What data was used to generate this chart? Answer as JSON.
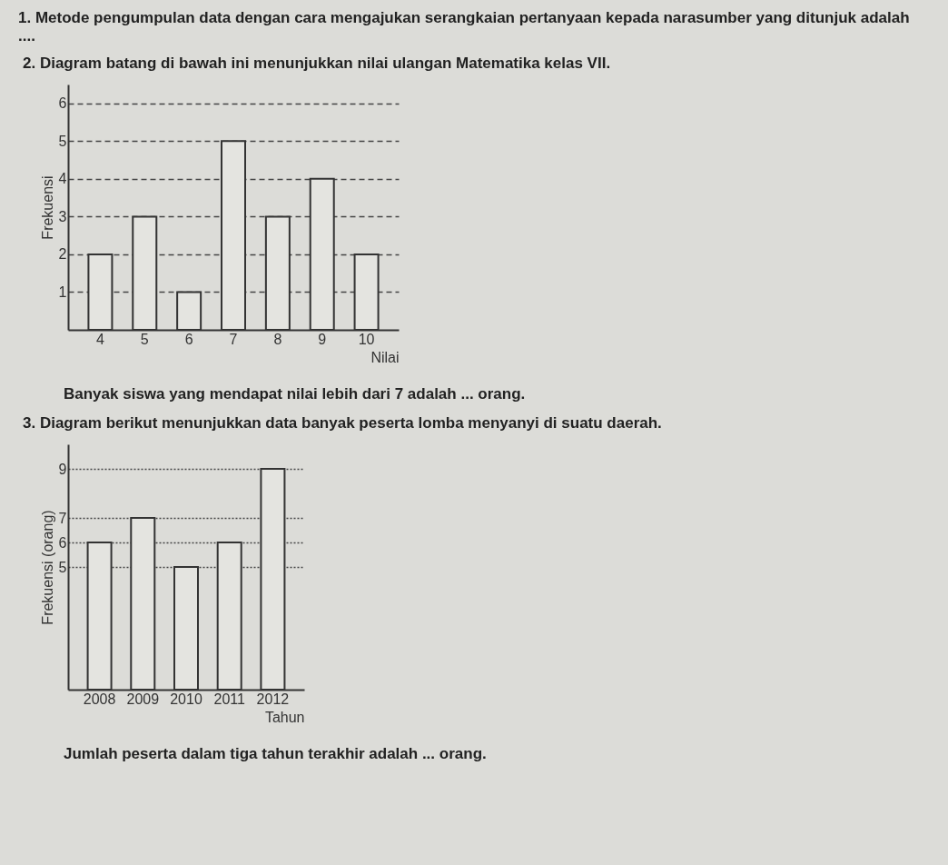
{
  "chart_data": [
    {
      "type": "other",
      "annotations": [
        "1. Metode pengumpulan data dengan cara mengajukan serangkaian pertanyaan kepada narasumber yang ditunjuk adalah ...."
      ]
    },
    {
      "type": "bar",
      "title": "2. Diagram batang di bawah ini menunjukkan nilai ulangan Matematika kelas VII.",
      "xlabel": "Nilai",
      "ylabel": "Frekuensi",
      "categories": [
        "4",
        "5",
        "6",
        "7",
        "8",
        "9",
        "10"
      ],
      "values": [
        2,
        3,
        1,
        5,
        3,
        4,
        2
      ],
      "color": "#e4e4e0",
      "ylim": [
        0,
        6.5
      ],
      "yticks": [
        1,
        2,
        3,
        4,
        5,
        6
      ],
      "grid": "y",
      "line_style": "dashed",
      "annotations": [
        "Banyak siswa yang mendapat nilai lebih dari 7 adalah ... orang."
      ]
    },
    {
      "type": "bar",
      "title": "3. Diagram berikut menunjukkan data banyak peserta lomba menyanyi di suatu daerah.",
      "xlabel": "Tahun",
      "ylabel": "Frekuensi (orang)",
      "categories": [
        "2008",
        "2009",
        "2010",
        "2011",
        "2012"
      ],
      "values": [
        6,
        7,
        5,
        6,
        9
      ],
      "color": "#e4e4e0",
      "ylim": [
        0,
        10
      ],
      "yticks": [
        5,
        6,
        7,
        9
      ],
      "grid": "y",
      "line_style": "dotted",
      "annotations": [
        "Jumlah peserta dalam tiga tahun terakhir adalah ... orang."
      ]
    }
  ]
}
